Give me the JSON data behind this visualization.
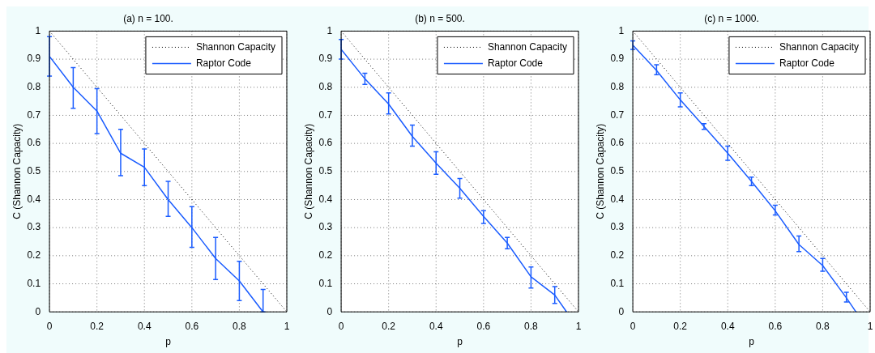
{
  "chart_data": [
    {
      "type": "line",
      "title": "(a) n = 100.",
      "xlabel": "p",
      "ylabel": "C (Shannon Capacity)",
      "xlim": [
        0,
        1
      ],
      "ylim": [
        0,
        1
      ],
      "xticks": [
        0,
        0.2,
        0.4,
        0.6,
        0.8,
        1
      ],
      "yticks": [
        0,
        0.1,
        0.2,
        0.3,
        0.4,
        0.5,
        0.6,
        0.7,
        0.8,
        0.9,
        1
      ],
      "grid": true,
      "legend": "top right",
      "marker": "none",
      "series": [
        {
          "name": "Shannon Capacity",
          "color": "#000000",
          "line_style": "dotted",
          "x": [
            0,
            1
          ],
          "values": [
            1,
            0
          ]
        },
        {
          "name": "Raptor Code",
          "color": "#1a5cff",
          "line_style": "solid",
          "x": [
            0,
            0.1,
            0.2,
            0.3,
            0.4,
            0.5,
            0.6,
            0.7,
            0.8,
            0.9
          ],
          "values": [
            0.91,
            0.8,
            0.715,
            0.565,
            0.515,
            0.4,
            0.3,
            0.19,
            0.11,
            0
          ],
          "errors": [
            [
              0.84,
              0.98
            ],
            [
              0.725,
              0.87
            ],
            [
              0.635,
              0.795
            ],
            [
              0.485,
              0.65
            ],
            [
              0.45,
              0.58
            ],
            [
              0.34,
              0.465
            ],
            [
              0.23,
              0.375
            ],
            [
              0.115,
              0.265
            ],
            [
              0.04,
              0.18
            ],
            [
              0,
              0.08
            ]
          ]
        }
      ]
    },
    {
      "type": "line",
      "title": "(b) n = 500.",
      "xlabel": "p",
      "ylabel": "C (Shannon Capacity)",
      "xlim": [
        0,
        1
      ],
      "ylim": [
        0,
        1
      ],
      "xticks": [
        0,
        0.2,
        0.4,
        0.6,
        0.8,
        1
      ],
      "yticks": [
        0,
        0.1,
        0.2,
        0.3,
        0.4,
        0.5,
        0.6,
        0.7,
        0.8,
        0.9,
        1
      ],
      "grid": true,
      "legend": "top right",
      "marker": "none",
      "series": [
        {
          "name": "Shannon Capacity",
          "color": "#000000",
          "line_style": "dotted",
          "x": [
            0,
            1
          ],
          "values": [
            1,
            0
          ]
        },
        {
          "name": "Raptor Code",
          "color": "#1a5cff",
          "line_style": "solid",
          "x": [
            0,
            0.1,
            0.2,
            0.3,
            0.4,
            0.5,
            0.6,
            0.7,
            0.8,
            0.9,
            0.95
          ],
          "values": [
            0.935,
            0.83,
            0.74,
            0.625,
            0.53,
            0.44,
            0.34,
            0.245,
            0.125,
            0.06,
            0
          ],
          "errors": [
            [
              0.9,
              0.97
            ],
            [
              0.81,
              0.85
            ],
            [
              0.705,
              0.78
            ],
            [
              0.59,
              0.665
            ],
            [
              0.49,
              0.57
            ],
            [
              0.405,
              0.475
            ],
            [
              0.315,
              0.36
            ],
            [
              0.225,
              0.265
            ],
            [
              0.085,
              0.16
            ],
            [
              0.03,
              0.09
            ],
            null
          ]
        }
      ]
    },
    {
      "type": "line",
      "title": "(c) n = 1000.",
      "xlabel": "p",
      "ylabel": "C (Shannon Capacity)",
      "xlim": [
        0,
        1
      ],
      "ylim": [
        0,
        1
      ],
      "xticks": [
        0,
        0.2,
        0.4,
        0.6,
        0.8,
        1
      ],
      "yticks": [
        0,
        0.1,
        0.2,
        0.3,
        0.4,
        0.5,
        0.6,
        0.7,
        0.8,
        0.9,
        1
      ],
      "grid": true,
      "legend": "top right",
      "marker": "none",
      "series": [
        {
          "name": "Shannon Capacity",
          "color": "#000000",
          "line_style": "dotted",
          "x": [
            0,
            1
          ],
          "values": [
            1,
            0
          ]
        },
        {
          "name": "Raptor Code",
          "color": "#1a5cff",
          "line_style": "solid",
          "x": [
            0,
            0.1,
            0.2,
            0.3,
            0.4,
            0.5,
            0.6,
            0.7,
            0.8,
            0.9,
            0.94
          ],
          "values": [
            0.95,
            0.86,
            0.755,
            0.66,
            0.565,
            0.465,
            0.36,
            0.24,
            0.165,
            0.05,
            0
          ],
          "errors": [
            [
              0.935,
              0.965
            ],
            [
              0.845,
              0.88
            ],
            [
              0.73,
              0.78
            ],
            [
              0.65,
              0.67
            ],
            [
              0.54,
              0.59
            ],
            [
              0.45,
              0.48
            ],
            [
              0.345,
              0.38
            ],
            [
              0.215,
              0.27
            ],
            [
              0.145,
              0.19
            ],
            [
              0.035,
              0.07
            ],
            null
          ]
        }
      ]
    }
  ]
}
